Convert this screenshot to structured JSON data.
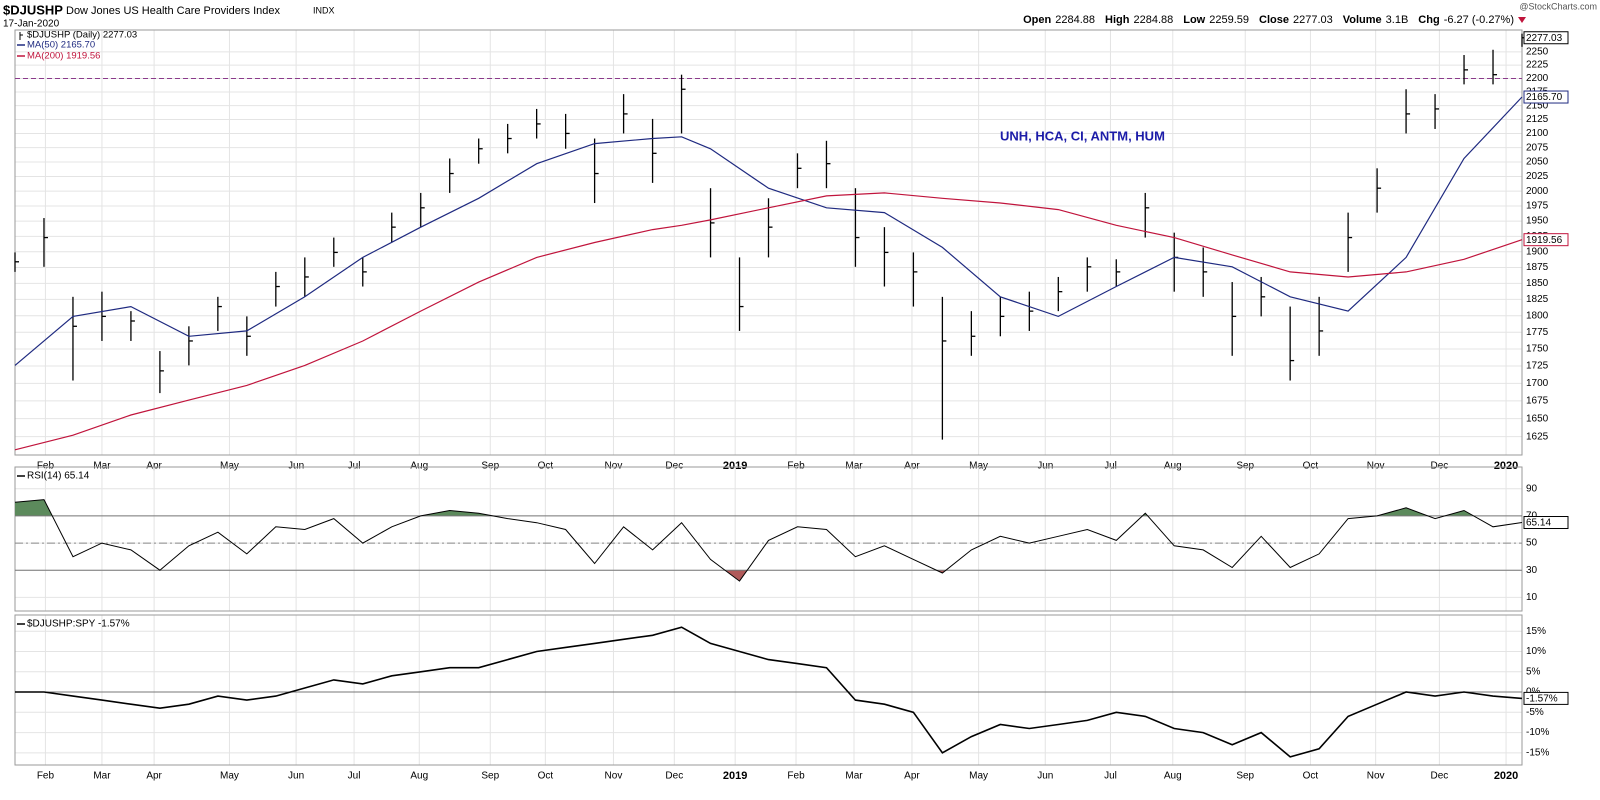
{
  "header": {
    "symbol": "$DJUSHP",
    "name": "Dow Jones US Health Care Providers Index",
    "exchange": "INDX",
    "date": "17-Jan-2020",
    "credit": "@StockCharts.com",
    "quote": [
      {
        "label": "Open",
        "value": "2284.88"
      },
      {
        "label": "High",
        "value": "2284.88"
      },
      {
        "label": "Low",
        "value": "2259.59"
      },
      {
        "label": "Close",
        "value": "2277.03"
      },
      {
        "label": "Volume",
        "value": "3.1B"
      },
      {
        "label": "Chg",
        "value": "-6.27 (-0.27%)"
      }
    ]
  },
  "chart_data": [
    {
      "type": "ohlc",
      "name": "$DJUSHP (Daily) 2277.03",
      "color": "#000000",
      "x": [
        0,
        2,
        4,
        6,
        8,
        10,
        12,
        14,
        16,
        18,
        20,
        22,
        24,
        26,
        28,
        30,
        32,
        34,
        36,
        38,
        40,
        42,
        44,
        46,
        48,
        50,
        52,
        54,
        56,
        58,
        60,
        62,
        64,
        66,
        68,
        70,
        72,
        74,
        76,
        78,
        80,
        82,
        84,
        86,
        88,
        90,
        92,
        94,
        96,
        98,
        100,
        102,
        104
      ],
      "high": [
        1899,
        1955,
        1829,
        1837,
        1807,
        1747,
        1784,
        1829,
        1799,
        1868,
        1891,
        1923,
        1891,
        1964,
        1997,
        2056,
        2091,
        2117,
        2144,
        2135,
        2091,
        2171,
        2126,
        2207,
        2005,
        1891,
        1988,
        2065,
        2087,
        2005,
        1940,
        1899,
        1829,
        1807,
        1829,
        1837,
        1860,
        1891,
        1888,
        1997,
        1931,
        1907,
        1852,
        1860,
        1814,
        1829,
        1964,
        2039,
        2180,
        2171,
        2244,
        2254,
        2284.88
      ],
      "low": [
        1868,
        1876,
        1704,
        1762,
        1762,
        1686,
        1726,
        1777,
        1740,
        1814,
        1829,
        1876,
        1845,
        1915,
        1940,
        1997,
        2047,
        2065,
        2091,
        2073,
        1980,
        2100,
        2014,
        2100,
        1891,
        1777,
        1891,
        2005,
        2005,
        1876,
        1845,
        1814,
        1621,
        1740,
        1769,
        1777,
        1807,
        1837,
        1845,
        1923,
        1837,
        1829,
        1740,
        1799,
        1704,
        1740,
        1868,
        1964,
        2100,
        2108,
        2189,
        2189,
        2259.59
      ],
      "close": [
        1884,
        1923,
        1784,
        1799,
        1792,
        1718,
        1762,
        1814,
        1769,
        1845,
        1860,
        1899,
        1868,
        1940,
        1972,
        2030,
        2073,
        2091,
        2117,
        2100,
        2030,
        2135,
        2065,
        2180,
        1947,
        1814,
        1940,
        2039,
        2047,
        1923,
        1899,
        1868,
        1762,
        1769,
        1799,
        1807,
        1837,
        1876,
        1868,
        1972,
        1891,
        1868,
        1799,
        1829,
        1733,
        1777,
        1923,
        2005,
        2135,
        2144,
        2216,
        2207,
        2277.03
      ],
      "series": [
        {
          "name": "MA(50) 2165.70",
          "color": "#1f2a80",
          "last_label": "2165.70",
          "x": [
            0,
            4,
            8,
            12,
            16,
            20,
            24,
            28,
            32,
            36,
            40,
            44,
            46,
            48,
            52,
            56,
            60,
            64,
            68,
            72,
            76,
            80,
            84,
            88,
            92,
            96,
            100,
            104
          ],
          "values": [
            1726,
            1799,
            1814,
            1769,
            1777,
            1829,
            1891,
            1940,
            1988,
            2047,
            2082,
            2091,
            2094,
            2073,
            2005,
            1972,
            1964,
            1907,
            1829,
            1799,
            1845,
            1891,
            1876,
            1829,
            1807,
            1891,
            2056,
            2165.7
          ]
        },
        {
          "name": "MA(200) 1919.56",
          "color": "#c0143c",
          "last_label": "1919.56",
          "x": [
            0,
            4,
            8,
            12,
            16,
            20,
            24,
            28,
            32,
            36,
            40,
            44,
            46,
            48,
            52,
            56,
            60,
            64,
            68,
            72,
            76,
            80,
            84,
            88,
            92,
            96,
            100,
            104
          ],
          "values": [
            1607,
            1627,
            1655,
            1676,
            1697,
            1726,
            1762,
            1807,
            1852,
            1891,
            1915,
            1936,
            1943,
            1952,
            1972,
            1992,
            1997,
            1988,
            1980,
            1969,
            1943,
            1923,
            1895,
            1868,
            1860,
            1868,
            1888,
            1919.56
          ]
        }
      ],
      "hline": {
        "value": 2200,
        "color": "#8b3a8b"
      },
      "annotation": "UNH, HCA, CI, ANTM, HUM",
      "annotation_color": "#1c1ca8",
      "xlim": [
        0,
        104
      ],
      "xticks": [
        {
          "value": 2.1,
          "label": "Feb"
        },
        {
          "value": 6.0,
          "label": "Mar"
        },
        {
          "value": 9.6,
          "label": "Apr"
        },
        {
          "value": 14.8,
          "label": "May"
        },
        {
          "value": 19.4,
          "label": "Jun"
        },
        {
          "value": 23.4,
          "label": "Jul"
        },
        {
          "value": 27.9,
          "label": "Aug"
        },
        {
          "value": 32.8,
          "label": "Sep"
        },
        {
          "value": 36.6,
          "label": "Oct"
        },
        {
          "value": 41.3,
          "label": "Nov"
        },
        {
          "value": 45.5,
          "label": "Dec"
        },
        {
          "value": 49.7,
          "label": "2019"
        },
        {
          "value": 53.9,
          "label": "Feb"
        },
        {
          "value": 57.9,
          "label": "Mar"
        },
        {
          "value": 61.9,
          "label": "Apr"
        },
        {
          "value": 66.5,
          "label": "May"
        },
        {
          "value": 71.1,
          "label": "Jun"
        },
        {
          "value": 75.6,
          "label": "Jul"
        },
        {
          "value": 79.9,
          "label": "Aug"
        },
        {
          "value": 84.9,
          "label": "Sep"
        },
        {
          "value": 89.4,
          "label": "Oct"
        },
        {
          "value": 93.9,
          "label": "Nov"
        },
        {
          "value": 98.3,
          "label": "Dec"
        },
        {
          "value": 102.9,
          "label": "2020"
        }
      ],
      "ylim": [
        1600,
        2292
      ],
      "log": true,
      "grid": true,
      "yticks": [
        1625,
        1650,
        1675,
        1700,
        1725,
        1750,
        1775,
        1800,
        1825,
        1850,
        1875,
        1900,
        1925,
        1950,
        1975,
        2000,
        2025,
        2050,
        2075,
        2100,
        2125,
        2150,
        2175,
        2200,
        2225,
        2250
      ]
    },
    {
      "type": "line",
      "name": "RSI(14) 65.14",
      "color": "#000000",
      "x": [
        0,
        2,
        4,
        6,
        8,
        10,
        12,
        14,
        16,
        18,
        20,
        22,
        24,
        26,
        28,
        30,
        32,
        34,
        36,
        38,
        40,
        42,
        44,
        46,
        48,
        50,
        52,
        54,
        56,
        58,
        60,
        62,
        64,
        66,
        68,
        70,
        72,
        74,
        76,
        78,
        80,
        82,
        84,
        86,
        88,
        90,
        92,
        94,
        96,
        98,
        100,
        102,
        104
      ],
      "values": [
        80,
        82,
        40,
        50,
        45,
        30,
        48,
        58,
        42,
        62,
        60,
        68,
        50,
        62,
        70,
        74,
        72,
        68,
        65,
        60,
        35,
        62,
        45,
        65,
        38,
        22,
        52,
        62,
        60,
        40,
        48,
        38,
        28,
        45,
        55,
        50,
        55,
        60,
        52,
        72,
        48,
        45,
        32,
        55,
        32,
        42,
        68,
        70,
        76,
        68,
        74,
        62,
        65.14
      ],
      "ylim": [
        0,
        106
      ],
      "yticks": [
        10,
        30,
        50,
        70,
        90
      ],
      "grid": true,
      "bands": [
        30,
        70
      ],
      "midline": 50,
      "fill_above": "#5c8a5c",
      "fill_below": "#b05a5a"
    },
    {
      "type": "line",
      "name": "$DJUSHP:SPY -1.57%",
      "color": "#000000",
      "last_label": "-1.57%",
      "x": [
        0,
        2,
        4,
        6,
        8,
        10,
        12,
        14,
        16,
        18,
        20,
        22,
        24,
        26,
        28,
        30,
        32,
        34,
        36,
        38,
        40,
        42,
        44,
        46,
        48,
        50,
        52,
        54,
        56,
        58,
        60,
        62,
        64,
        66,
        68,
        70,
        72,
        74,
        76,
        78,
        80,
        82,
        84,
        86,
        88,
        90,
        92,
        94,
        96,
        98,
        100,
        102,
        104
      ],
      "values": [
        0,
        0,
        -1,
        -2,
        -3,
        -4,
        -3,
        -1,
        -2,
        -1,
        1,
        3,
        2,
        4,
        5,
        6,
        6,
        8,
        10,
        11,
        12,
        13,
        14,
        16,
        12,
        10,
        8,
        7,
        6,
        -2,
        -3,
        -5,
        -15,
        -11,
        -8,
        -9,
        -8,
        -7,
        -5,
        -6,
        -9,
        -10,
        -13,
        -10,
        -16,
        -14,
        -6,
        -3,
        0,
        -1,
        0,
        -1,
        -1.57
      ],
      "xlim": [
        0,
        104
      ],
      "xticks": [
        {
          "value": 2.1,
          "label": "Feb"
        },
        {
          "value": 6.0,
          "label": "Mar"
        },
        {
          "value": 9.6,
          "label": "Apr"
        },
        {
          "value": 14.8,
          "label": "May"
        },
        {
          "value": 19.4,
          "label": "Jun"
        },
        {
          "value": 23.4,
          "label": "Jul"
        },
        {
          "value": 27.9,
          "label": "Aug"
        },
        {
          "value": 32.8,
          "label": "Sep"
        },
        {
          "value": 36.6,
          "label": "Oct"
        },
        {
          "value": 41.3,
          "label": "Nov"
        },
        {
          "value": 45.5,
          "label": "Dec"
        },
        {
          "value": 49.7,
          "label": "2019"
        },
        {
          "value": 53.9,
          "label": "Feb"
        },
        {
          "value": 57.9,
          "label": "Mar"
        },
        {
          "value": 61.9,
          "label": "Apr"
        },
        {
          "value": 66.5,
          "label": "May"
        },
        {
          "value": 71.1,
          "label": "Jun"
        },
        {
          "value": 75.6,
          "label": "Jul"
        },
        {
          "value": 79.9,
          "label": "Aug"
        },
        {
          "value": 84.9,
          "label": "Sep"
        },
        {
          "value": 89.4,
          "label": "Oct"
        },
        {
          "value": 93.9,
          "label": "Nov"
        },
        {
          "value": 98.3,
          "label": "Dec"
        },
        {
          "value": 102.9,
          "label": "2020"
        }
      ],
      "ylim": [
        -18,
        19
      ],
      "grid": true,
      "baseline": 0,
      "yticks": [
        {
          "value": 15,
          "label": "15%"
        },
        {
          "value": 10,
          "label": "10%"
        },
        {
          "value": 5,
          "label": "5%"
        },
        {
          "value": 0,
          "label": "0%"
        },
        {
          "value": -5,
          "label": "-5%"
        },
        {
          "value": -10,
          "label": "-10%"
        },
        {
          "value": -15,
          "label": "-15%"
        }
      ]
    }
  ]
}
